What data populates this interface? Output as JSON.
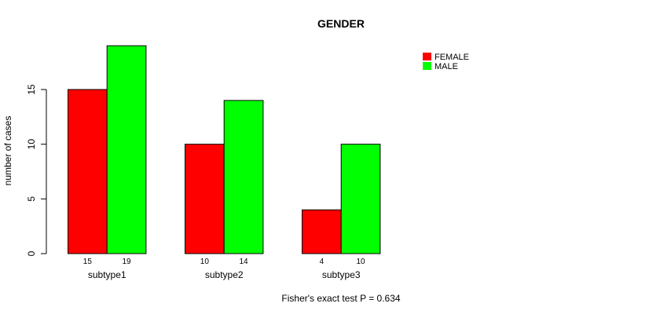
{
  "chart_data": {
    "type": "bar",
    "title": "GENDER",
    "xlabel": "",
    "ylabel": "number of cases",
    "ylim": [
      0,
      19
    ],
    "yticks": [
      0,
      5,
      10,
      15
    ],
    "categories": [
      "subtype1",
      "subtype2",
      "subtype3"
    ],
    "series": [
      {
        "name": "FEMALE",
        "color": "#ff0000",
        "values": [
          15,
          10,
          4
        ]
      },
      {
        "name": "MALE",
        "color": "#00ff00",
        "values": [
          19,
          14,
          10
        ]
      }
    ],
    "legend_position": "top-right",
    "grid": false,
    "annotation": "Fisher's exact test P = 0.634"
  }
}
